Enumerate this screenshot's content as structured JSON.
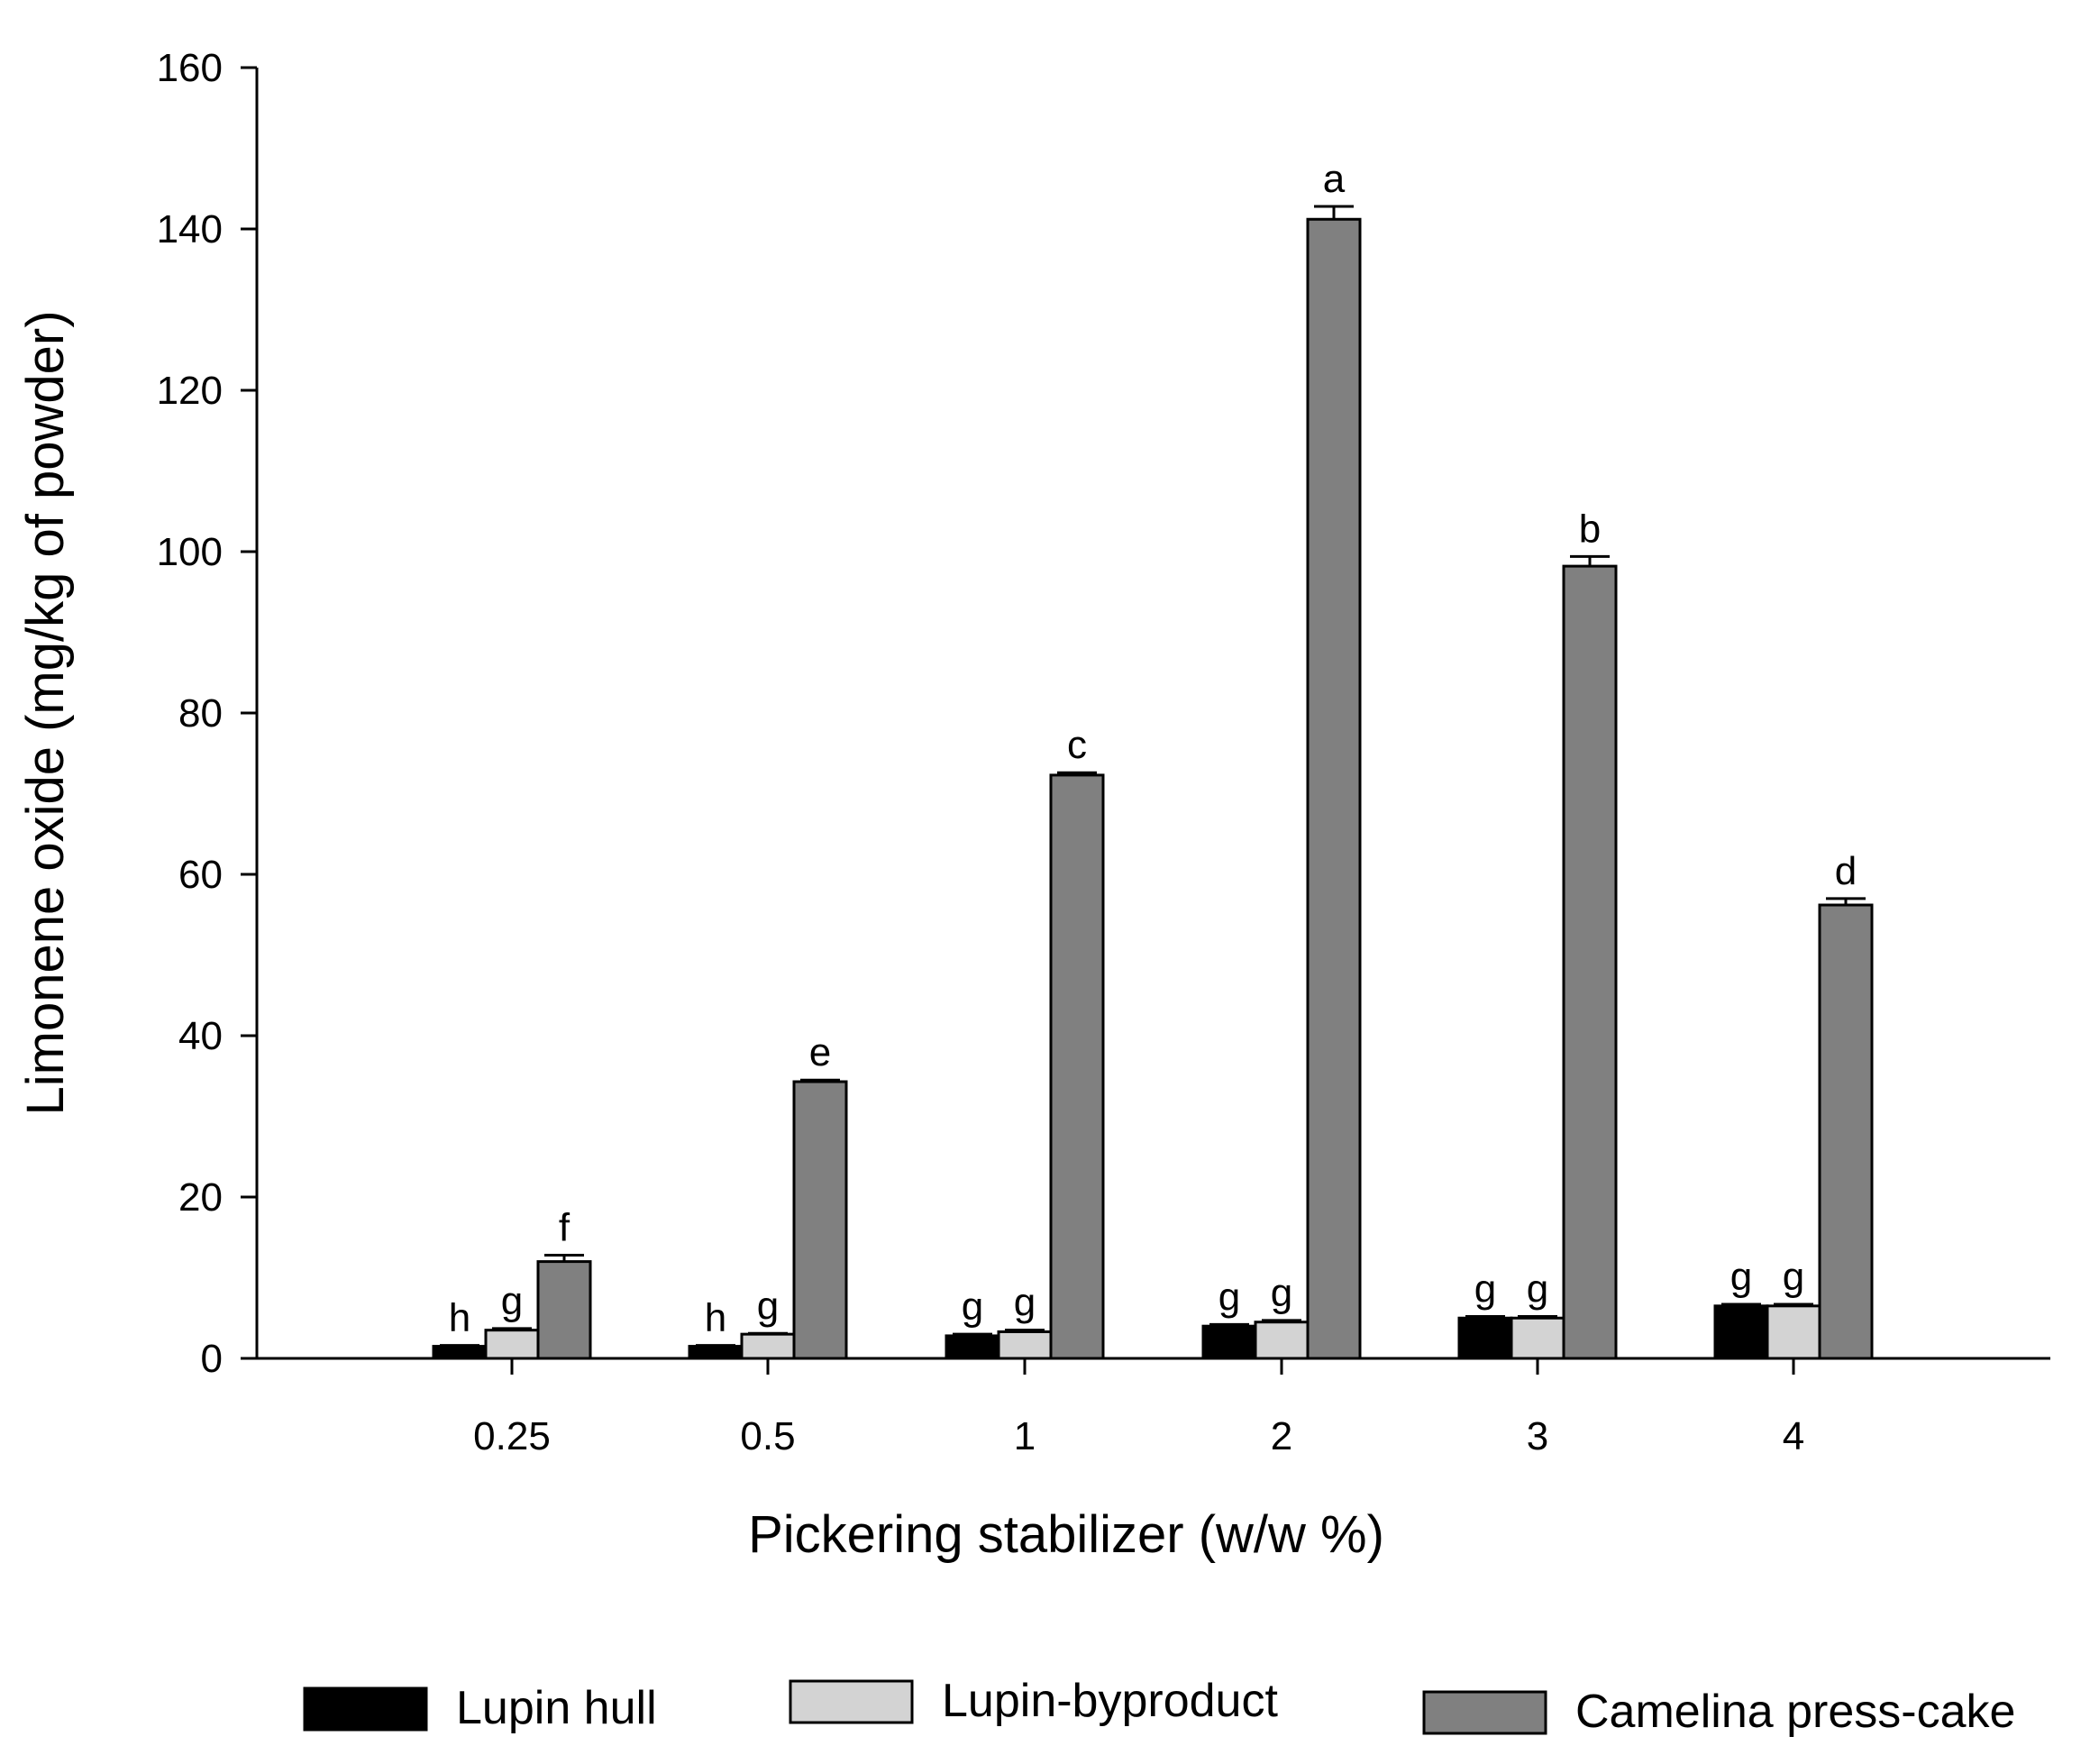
{
  "chart_data": {
    "type": "bar",
    "title": "",
    "xlabel": "Pickering stabilizer (w/w %)",
    "ylabel": "Limonene oxide (mg/kg of powder)",
    "ylim": [
      0,
      160
    ],
    "yticks": [
      0,
      20,
      40,
      60,
      80,
      100,
      120,
      140,
      160
    ],
    "categories": [
      "0.25",
      "0.5",
      "1",
      "2",
      "3",
      "4"
    ],
    "grid": false,
    "legend_position": "bottom",
    "series": [
      {
        "name": "Lupin hull",
        "color": "#000000",
        "values": [
          1.5,
          1.5,
          2.8,
          4.0,
          5.0,
          6.5
        ],
        "errors": [
          0.1,
          0.1,
          0.2,
          0.2,
          0.2,
          0.2
        ],
        "letters": [
          "h",
          "h",
          "g",
          "g",
          "g",
          "g"
        ]
      },
      {
        "name": "Lupin-byproduct",
        "color": "#d3d3d3",
        "values": [
          3.5,
          3.0,
          3.3,
          4.5,
          5.0,
          6.5
        ],
        "errors": [
          0.2,
          0.1,
          0.2,
          0.2,
          0.2,
          0.2
        ],
        "letters": [
          "g",
          "g",
          "g",
          "g",
          "g",
          "g"
        ]
      },
      {
        "name": "Camelina press-cake",
        "color": "#808080",
        "values": [
          12.0,
          34.3,
          72.3,
          141.2,
          98.2,
          56.2
        ],
        "errors": [
          0.8,
          0.2,
          0.3,
          1.6,
          1.2,
          0.8
        ],
        "letters": [
          "f",
          "e",
          "c",
          "a",
          "b",
          "d"
        ]
      }
    ]
  }
}
